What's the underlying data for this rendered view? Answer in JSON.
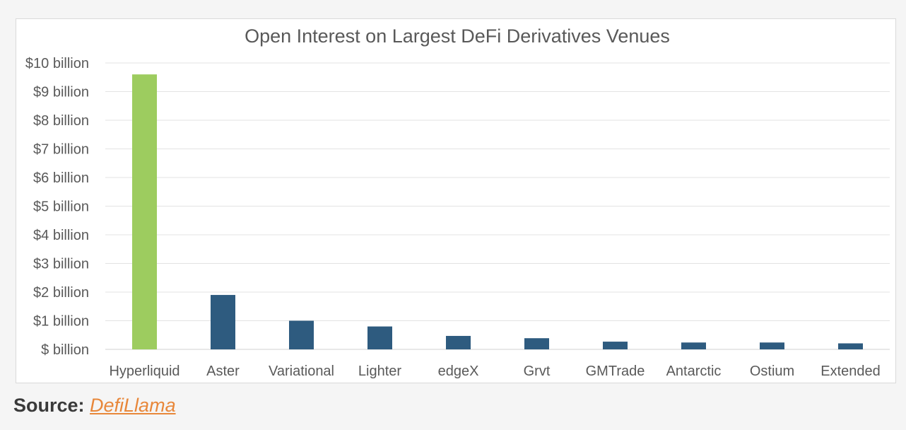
{
  "chart_data": {
    "type": "bar",
    "title": "Open Interest on Largest DeFi Derivatives Venues",
    "xlabel": "",
    "ylabel": "",
    "categories": [
      "Hyperliquid",
      "Aster",
      "Variational",
      "Lighter",
      "edgeX",
      "Grvt",
      "GMTrade",
      "Antarctic",
      "Ostium",
      "Extended"
    ],
    "values": [
      9.6,
      1.9,
      1.0,
      0.8,
      0.47,
      0.39,
      0.27,
      0.24,
      0.24,
      0.21
    ],
    "ylim": [
      0,
      10
    ],
    "yticks": [
      0,
      1,
      2,
      3,
      4,
      5,
      6,
      7,
      8,
      9,
      10
    ],
    "ytick_labels": [
      "$ billion",
      "$1 billion",
      "$2 billion",
      "$3 billion",
      "$4 billion",
      "$5 billion",
      "$6 billion",
      "$7 billion",
      "$8 billion",
      "$9 billion",
      "$10 billion"
    ],
    "grid": true,
    "legend": "none",
    "colors": {
      "highlight": "#9dcc5f",
      "default": "#2e5b7f",
      "grid": "#e3e3e3",
      "axis": "#d0d0d0",
      "text": "#595959",
      "title": "#595959"
    },
    "highlight_index": 0
  },
  "source": {
    "label": "Source: ",
    "link_text": "DefiLlama"
  }
}
